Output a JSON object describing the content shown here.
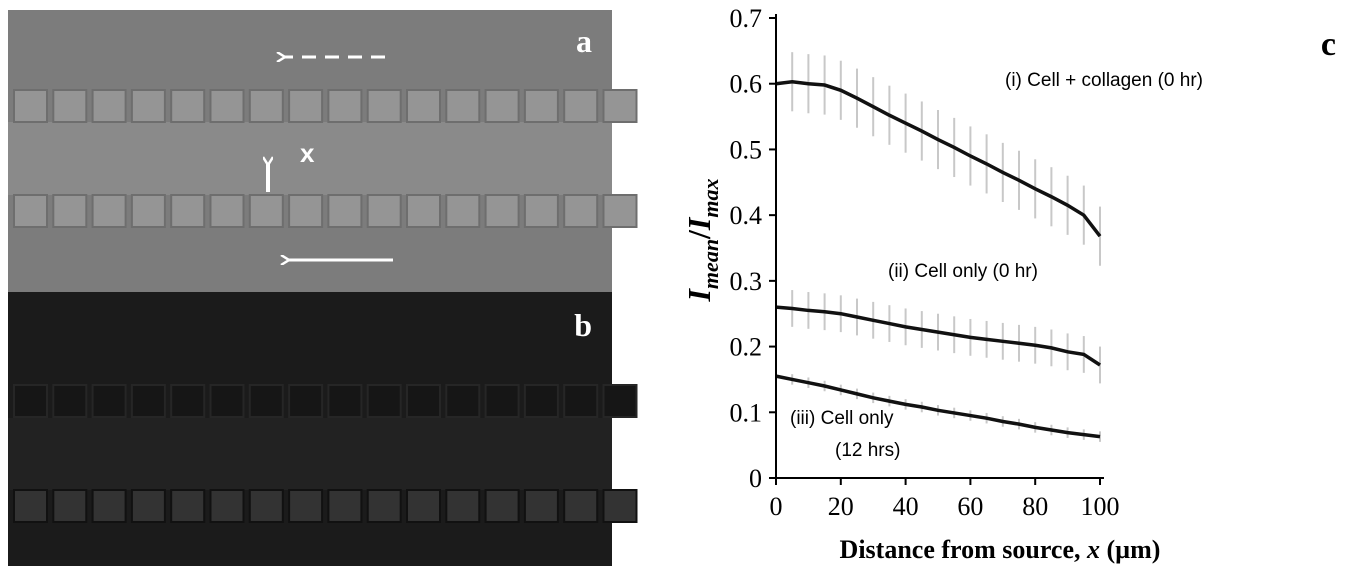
{
  "panels": [
    {
      "label": "a"
    },
    {
      "label": "b"
    }
  ],
  "marker_label": "x",
  "chart_data": {
    "type": "line",
    "panel_label": "c",
    "ylabel_parts": [
      "I",
      "mean",
      "/",
      "I",
      "max"
    ],
    "xlabel_parts": [
      "Distance from source, ",
      "x",
      " (µm)"
    ],
    "x": [
      0,
      5,
      10,
      15,
      20,
      25,
      30,
      35,
      40,
      45,
      50,
      55,
      60,
      65,
      70,
      75,
      80,
      85,
      90,
      95,
      100
    ],
    "xlim": [
      0,
      100
    ],
    "xticks": [
      0,
      20,
      40,
      60,
      80,
      100
    ],
    "ylim": [
      0,
      0.7
    ],
    "yticks": [
      0,
      0.1,
      0.2,
      0.3,
      0.4,
      0.5,
      0.6,
      0.7
    ],
    "annotations": [
      [
        "(i) Cell + collagen (0 hr)"
      ],
      [
        "(ii) Cell only (0 hr)"
      ],
      [
        "(iii) Cell only",
        "(12 hrs)"
      ]
    ],
    "series": [
      {
        "color": "#111111",
        "error": 0.045,
        "values": [
          0.6,
          0.603,
          0.6,
          0.598,
          0.59,
          0.578,
          0.565,
          0.552,
          0.54,
          0.528,
          0.515,
          0.503,
          0.49,
          0.478,
          0.465,
          0.453,
          0.44,
          0.428,
          0.415,
          0.4,
          0.368
        ]
      },
      {
        "color": "#111111",
        "error": 0.028,
        "values": [
          0.26,
          0.258,
          0.255,
          0.253,
          0.25,
          0.245,
          0.24,
          0.235,
          0.23,
          0.226,
          0.222,
          0.218,
          0.214,
          0.211,
          0.208,
          0.205,
          0.202,
          0.198,
          0.192,
          0.188,
          0.172
        ]
      },
      {
        "color": "#111111",
        "error": 0.008,
        "values": [
          0.155,
          0.15,
          0.145,
          0.14,
          0.134,
          0.128,
          0.122,
          0.117,
          0.112,
          0.108,
          0.103,
          0.099,
          0.095,
          0.091,
          0.086,
          0.082,
          0.077,
          0.073,
          0.069,
          0.066,
          0.063
        ]
      }
    ]
  }
}
